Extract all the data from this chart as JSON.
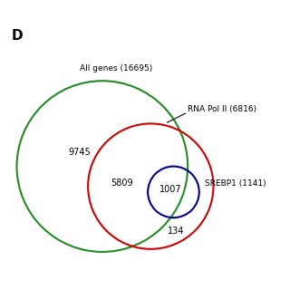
{
  "panel_label": "D",
  "all_genes_label": "All genes (16695)",
  "all_genes_count": "9745",
  "rnapol_label": "RNA Pol II (6816)",
  "rnapol_only": "5809",
  "srebp_label": "SREBP1 (1141)",
  "srebp_only": "134",
  "overlap": "1007",
  "background_color": "#ffffff",
  "circle_all_color": "#228B22",
  "circle_rnapol_color": "#CC0000",
  "circle_srebp_color": "#00008B",
  "fig_width": 3.2,
  "fig_height": 3.2,
  "dpi": 100
}
